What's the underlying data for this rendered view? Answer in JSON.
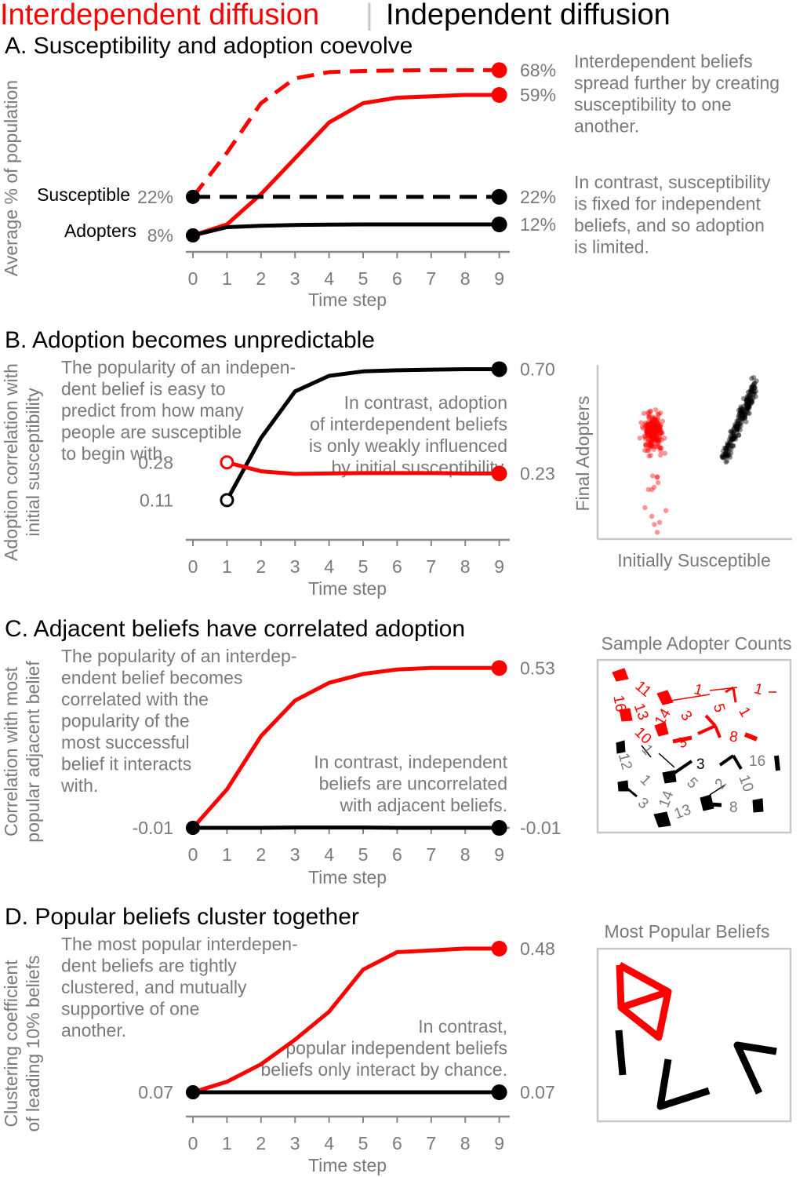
{
  "header": {
    "left": "Interdependent diffusion",
    "separator": "|",
    "right": "Independent diffusion"
  },
  "colors": {
    "interdependent": "#ff0000",
    "independent": "#000000",
    "annotation": "#7a7a7a",
    "axis": "#888888",
    "frame": "#c8c8c8"
  },
  "chart_data": [
    {
      "id": "A",
      "type": "line",
      "title": "A. Susceptibility and adoption coevolve",
      "xlabel": "Time step",
      "ylabel": "Average % of population",
      "x": [
        0,
        1,
        2,
        3,
        4,
        5,
        6,
        7,
        8,
        9
      ],
      "ylim": [
        0,
        75
      ],
      "series": [
        {
          "group": "interdependent",
          "style": "dashed",
          "values": [
            22,
            38,
            56,
            65,
            67.3,
            67.7,
            67.9,
            68,
            68,
            68
          ],
          "start_label": "",
          "end_label": "68%"
        },
        {
          "group": "interdependent",
          "style": "solid",
          "values": [
            8,
            12,
            23,
            36,
            49,
            56,
            58,
            58.5,
            59,
            59
          ],
          "start_label": "",
          "end_label": "59%"
        },
        {
          "group": "independent",
          "style": "dashed",
          "values": [
            22,
            22,
            22,
            22,
            22,
            22,
            22,
            22,
            22,
            22
          ],
          "start_label": "22%",
          "end_label": "22%"
        },
        {
          "group": "independent",
          "style": "solid",
          "values": [
            8,
            11,
            11.5,
            11.8,
            11.9,
            12,
            12,
            12,
            12,
            12
          ],
          "start_label": "8%",
          "end_label": "12%"
        }
      ],
      "row_labels": [
        "Susceptible",
        "Adopters"
      ],
      "notes": [
        {
          "lines": [
            "Interdependent beliefs",
            "spread further by creating",
            "susceptibility to one",
            "another."
          ]
        },
        {
          "lines": [
            "In contrast, susceptibility",
            "is fixed for independent",
            "beliefs, and so adoption",
            "is limited."
          ]
        }
      ]
    },
    {
      "id": "B",
      "type": "line",
      "title": "B. Adoption becomes unpredictable",
      "xlabel": "Time step",
      "ylabel": [
        "Adoption correlation with",
        "initial susceptibility"
      ],
      "x": [
        1,
        2,
        3,
        4,
        5,
        6,
        7,
        8,
        9
      ],
      "ylim": [
        0.03,
        0.73
      ],
      "series": [
        {
          "group": "independent",
          "style": "solid",
          "values": [
            0.11,
            0.39,
            0.6,
            0.67,
            0.69,
            0.695,
            0.698,
            0.7,
            0.7
          ],
          "start_label": "0.11",
          "end_label": "0.70",
          "open_start": true
        },
        {
          "group": "interdependent",
          "style": "solid",
          "values": [
            0.28,
            0.24,
            0.228,
            0.23,
            0.232,
            0.232,
            0.232,
            0.23,
            0.23
          ],
          "start_label": "0.28",
          "end_label": "0.23",
          "open_start": true
        }
      ],
      "notes": [
        {
          "lines": [
            "The popularity of an indepen-",
            "dent belief is easy to",
            "predict from how many",
            "people are susceptible",
            "to begin with."
          ]
        },
        {
          "lines": [
            "In contrast, adoption",
            "of interdependent beliefs",
            "is only weakly influenced",
            "by initial susceptibility."
          ]
        }
      ]
    },
    {
      "id": "B-inset",
      "type": "scatter",
      "xlabel": "Initially Susceptible",
      "ylabel": "Final Adopters",
      "clusters": [
        {
          "group": "interdependent",
          "x_center": 0.27,
          "x_spread": 0.11,
          "y_center": 0.62,
          "y_spread": 0.1,
          "tail_to": 0.02,
          "n": 220
        },
        {
          "group": "independent",
          "x_center": 0.72,
          "x_spread": 0.14,
          "y_center": 0.6,
          "y_spread": 0.14,
          "n": 200
        }
      ]
    },
    {
      "id": "C",
      "type": "line",
      "title": "C. Adjacent beliefs have correlated adoption",
      "xlabel": "Time step",
      "ylabel": [
        "Correlation with most",
        "popular adjacent belief"
      ],
      "x": [
        0,
        1,
        2,
        3,
        4,
        5,
        6,
        7,
        8,
        9
      ],
      "ylim": [
        -0.01,
        0.56
      ],
      "series": [
        {
          "group": "interdependent",
          "style": "solid",
          "values": [
            -0.01,
            0.12,
            0.3,
            0.42,
            0.48,
            0.51,
            0.525,
            0.53,
            0.53,
            0.53
          ],
          "start_label": "",
          "end_label": "0.53"
        },
        {
          "group": "independent",
          "style": "solid",
          "values": [
            -0.01,
            -0.01,
            -0.01,
            -0.009,
            -0.009,
            -0.009,
            -0.01,
            -0.01,
            -0.01,
            -0.01
          ],
          "start_label": "-0.01",
          "end_label": "-0.01"
        }
      ],
      "notes": [
        {
          "lines": [
            "The popularity of an interdep-",
            "endent belief becomes",
            "correlated with the",
            "popularity of the",
            "most successful",
            "belief it interacts",
            "with."
          ]
        },
        {
          "lines": [
            "In contrast, independent",
            "beliefs are uncorrelated",
            "with adjacent beliefs."
          ]
        }
      ]
    },
    {
      "id": "C-inset",
      "type": "network",
      "title": "Sample Adopter Counts",
      "node_labels": {
        "interdependent": [
          "11",
          "16",
          "13",
          "10",
          "14",
          "3",
          "1",
          "3",
          "5",
          "1",
          "1",
          "8"
        ],
        "independent": [
          "12",
          "1",
          "1",
          "3",
          "14",
          "13",
          "5",
          "2",
          "10",
          "16",
          "3",
          "8"
        ]
      }
    },
    {
      "id": "D",
      "type": "line",
      "title": "D. Popular beliefs cluster together",
      "xlabel": "Time step",
      "ylabel": [
        "Clustering coefficient",
        "of leading 10% beliefs"
      ],
      "x": [
        0,
        1,
        2,
        3,
        4,
        5,
        6,
        7,
        8,
        9
      ],
      "ylim": [
        0.07,
        0.5
      ],
      "series": [
        {
          "group": "interdependent",
          "style": "solid",
          "values": [
            0.07,
            0.1,
            0.15,
            0.22,
            0.3,
            0.42,
            0.47,
            0.475,
            0.48,
            0.48
          ],
          "start_label": "",
          "end_label": "0.48"
        },
        {
          "group": "independent",
          "style": "solid",
          "values": [
            0.07,
            0.07,
            0.07,
            0.07,
            0.07,
            0.07,
            0.07,
            0.07,
            0.07,
            0.07
          ],
          "start_label": "0.07",
          "end_label": "0.07"
        }
      ],
      "notes": [
        {
          "lines": [
            "The most popular interdepen-",
            "dent beliefs are tightly",
            "clustered, and mutually",
            "supportive of one",
            "another."
          ]
        },
        {
          "lines": [
            "In contrast,",
            "popular independent beliefs",
            "beliefs only interact by chance."
          ]
        }
      ]
    },
    {
      "id": "D-inset",
      "type": "network",
      "title": "Most Popular Beliefs"
    }
  ]
}
